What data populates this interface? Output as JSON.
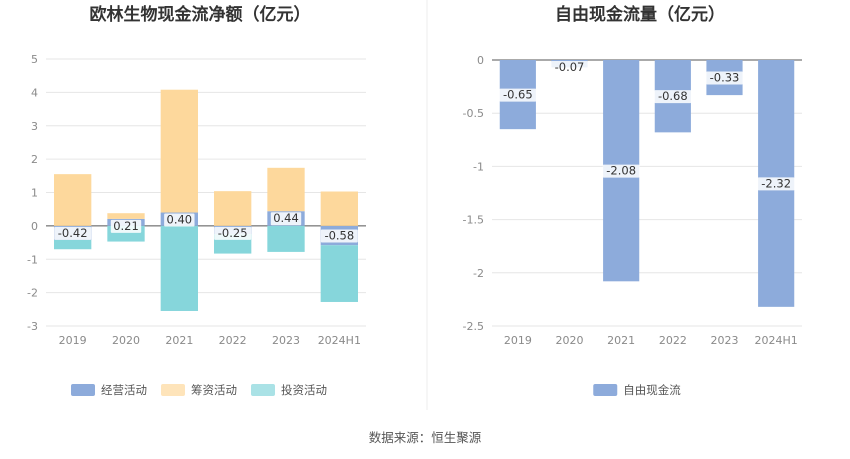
{
  "source": "数据来源：恒生聚源",
  "chart_data": [
    {
      "type": "bar",
      "stacked": true,
      "title": "欧林生物现金流净额（亿元）",
      "categories": [
        "2019",
        "2020",
        "2021",
        "2022",
        "2023",
        "2024H1"
      ],
      "ylim": [
        -3,
        5
      ],
      "yticks": [
        "5",
        "4",
        "3",
        "2",
        "1",
        "0",
        "-1",
        "-2",
        "-3"
      ],
      "ytick_values": [
        5,
        4,
        3,
        2,
        1,
        0,
        -1,
        -2,
        -3
      ],
      "grid": true,
      "legend_position": "bottom",
      "labeled_series": 0,
      "series": [
        {
          "name": "经营活动",
          "color": "#8dabdb",
          "values": [
            -0.42,
            0.21,
            0.4,
            -0.25,
            0.44,
            -0.58
          ],
          "labels": [
            "-0.42",
            "0.21",
            "0.40",
            "-0.25",
            "0.44",
            "-0.58"
          ]
        },
        {
          "name": "筹资活动",
          "color": "#fdd89c",
          "values": [
            1.55,
            0.17,
            3.68,
            1.04,
            1.3,
            1.03
          ]
        },
        {
          "name": "投资活动",
          "color": "#86d6db",
          "values": [
            -0.28,
            -0.47,
            -2.55,
            -0.58,
            -0.78,
            -1.7
          ]
        }
      ]
    },
    {
      "type": "bar",
      "title": "自由现金流量（亿元）",
      "categories": [
        "2019",
        "2020",
        "2021",
        "2022",
        "2023",
        "2024H1"
      ],
      "ylim": [
        -2.5,
        0
      ],
      "yticks": [
        "0",
        "-0.5",
        "-1",
        "-1.5",
        "-2",
        "-2.5"
      ],
      "ytick_values": [
        0,
        -0.5,
        -1,
        -1.5,
        -2,
        -2.5
      ],
      "grid": true,
      "legend_position": "bottom",
      "labeled_series": 0,
      "series": [
        {
          "name": "自由现金流",
          "color": "#8dabdb",
          "values": [
            -0.65,
            -0.07,
            -2.08,
            -0.68,
            -0.33,
            -2.32
          ],
          "labels": [
            "-0.65",
            "-0.07",
            "-2.08",
            "-0.68",
            "-0.33",
            "-2.32"
          ]
        }
      ]
    }
  ]
}
